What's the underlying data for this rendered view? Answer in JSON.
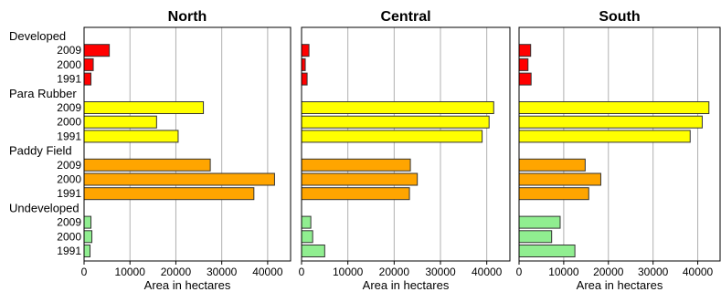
{
  "chart_data": {
    "type": "bar",
    "orientation": "horizontal",
    "grid": true,
    "xlabel": "Area in hectares",
    "xlim": [
      0,
      45000
    ],
    "xticks": [
      0,
      10000,
      20000,
      30000,
      40000
    ],
    "xtick_labels": [
      "0",
      "10000",
      "20000",
      "30000",
      "40000"
    ],
    "groups": [
      {
        "name": "Developed",
        "years": [
          "2009",
          "2000",
          "1991"
        ],
        "color": "#ff0000"
      },
      {
        "name": "Para Rubber",
        "years": [
          "2009",
          "2000",
          "1991"
        ],
        "color": "#ffff00"
      },
      {
        "name": "Paddy Field",
        "years": [
          "2009",
          "2000",
          "1991"
        ],
        "color": "#ffa500"
      },
      {
        "name": "Undeveloped",
        "years": [
          "2009",
          "2000",
          "1991"
        ],
        "color": "#90ee90"
      }
    ],
    "panels": [
      {
        "title": "North",
        "values": {
          "Developed": [
            5500,
            2000,
            1500
          ],
          "Para Rubber": [
            26000,
            15800,
            20500
          ],
          "Paddy Field": [
            27500,
            41500,
            37000
          ],
          "Undeveloped": [
            1500,
            1700,
            1300
          ]
        }
      },
      {
        "title": "Central",
        "values": {
          "Developed": [
            1600,
            800,
            1200
          ],
          "Para Rubber": [
            41500,
            40500,
            39000
          ],
          "Paddy Field": [
            23500,
            25000,
            23300
          ],
          "Undeveloped": [
            2000,
            2400,
            5000
          ]
        }
      },
      {
        "title": "South",
        "values": {
          "Developed": [
            2600,
            2000,
            2700
          ],
          "Para Rubber": [
            42500,
            41000,
            38300
          ],
          "Paddy Field": [
            14800,
            18300,
            15600
          ],
          "Undeveloped": [
            9200,
            7300,
            12500
          ]
        }
      }
    ]
  }
}
